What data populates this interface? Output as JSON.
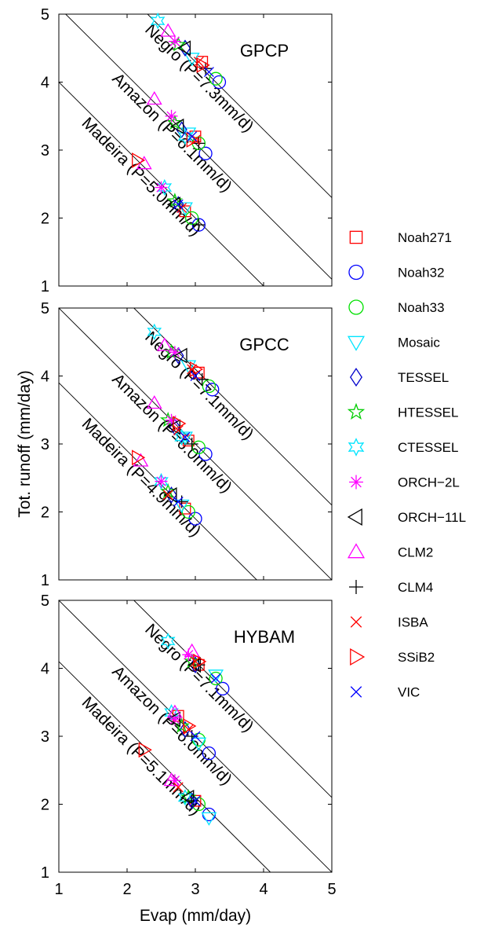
{
  "figure": {
    "xlabel": "Evap (mm/day)",
    "ylabel": "Tot. runoff (mm/day)"
  },
  "legend": {
    "entries": [
      {
        "label": "Noah271",
        "marker": "square",
        "color": "#ff0000"
      },
      {
        "label": "Noah32",
        "marker": "circle",
        "color": "#0000ff"
      },
      {
        "label": "Noah33",
        "marker": "circle",
        "color": "#00e000"
      },
      {
        "label": "Mosaic",
        "marker": "triangle-down",
        "color": "#00e5ff"
      },
      {
        "label": "TESSEL",
        "marker": "diamond",
        "color": "#0000cc"
      },
      {
        "label": "HTESSEL",
        "marker": "pentagram",
        "color": "#00cc00"
      },
      {
        "label": "CTESSEL",
        "marker": "hexagram",
        "color": "#00e5ff"
      },
      {
        "label": "ORCH−2L",
        "marker": "asterisk",
        "color": "#ff00ff"
      },
      {
        "label": "ORCH−11L",
        "marker": "triangle-left",
        "color": "#000000"
      },
      {
        "label": "CLM2",
        "marker": "triangle-up",
        "color": "#ff00ff"
      },
      {
        "label": "CLM4",
        "marker": "plus",
        "color": "#000000"
      },
      {
        "label": "ISBA",
        "marker": "x",
        "color": "#ff0000"
      },
      {
        "label": "SSiB2",
        "marker": "triangle-right",
        "color": "#ff0000"
      },
      {
        "label": "VIC",
        "marker": "x",
        "color": "#0000ff"
      }
    ]
  },
  "chart_data": [
    {
      "type": "scatter",
      "title": "GPCP",
      "xlim": [
        1,
        5
      ],
      "ylim": [
        1,
        5
      ],
      "xticks": [
        "1",
        "2",
        "3",
        "4",
        "5"
      ],
      "yticks": [
        "1",
        "2",
        "3",
        "4",
        "5"
      ],
      "tick_labels_x_visible": false,
      "lines": [
        {
          "label": "Negro (P=7.3mm/d)",
          "P": 7.3
        },
        {
          "label": "Amazon (P=6.1mm/d)",
          "P": 6.1
        },
        {
          "label": "Madeira (P=5.0mm/d)",
          "P": 5.0
        }
      ],
      "series": [
        {
          "model": "Noah271",
          "points": [
            [
              3.1,
              4.3
            ],
            [
              3.0,
              3.2
            ],
            [
              2.85,
              2.1
            ]
          ]
        },
        {
          "model": "Noah32",
          "points": [
            [
              3.35,
              4.0
            ],
            [
              3.15,
              2.95
            ],
            [
              3.05,
              1.9
            ]
          ]
        },
        {
          "model": "Noah33",
          "points": [
            [
              3.3,
              4.05
            ],
            [
              3.05,
              3.1
            ],
            [
              2.95,
              2.0
            ]
          ]
        },
        {
          "model": "Mosaic",
          "points": [
            [
              2.95,
              4.35
            ],
            [
              2.9,
              3.25
            ],
            [
              2.85,
              2.15
            ]
          ]
        },
        {
          "model": "TESSEL",
          "points": [
            [
              2.85,
              4.5
            ],
            [
              2.8,
              3.3
            ],
            [
              2.75,
              2.2
            ]
          ]
        },
        {
          "model": "HTESSEL",
          "points": [
            [
              2.75,
              4.55
            ],
            [
              2.7,
              3.4
            ],
            [
              2.7,
              2.25
            ]
          ]
        },
        {
          "model": "CTESSEL",
          "points": [
            [
              2.45,
              4.9
            ],
            [
              2.85,
              3.2
            ],
            [
              2.55,
              2.45
            ]
          ]
        },
        {
          "model": "ORCH−2L",
          "points": [
            [
              2.7,
              4.6
            ],
            [
              2.65,
              3.5
            ],
            [
              2.5,
              2.45
            ]
          ]
        },
        {
          "model": "ORCH−11L",
          "points": [
            [
              2.85,
              4.5
            ],
            [
              2.75,
              3.35
            ],
            [
              2.7,
              2.2
            ]
          ]
        },
        {
          "model": "CLM2",
          "points": [
            [
              2.6,
              4.75
            ],
            [
              2.4,
              3.75
            ],
            [
              2.25,
              2.8
            ]
          ]
        },
        {
          "model": "CLM4",
          "points": [
            [
              3.15,
              4.2
            ],
            [
              3.05,
              3.1
            ],
            [
              3.05,
              1.9
            ]
          ]
        },
        {
          "model": "ISBA",
          "points": [
            [
              3.05,
              4.3
            ],
            [
              3.0,
              3.15
            ],
            [
              2.8,
              2.15
            ]
          ]
        },
        {
          "model": "SSiB2",
          "points": [
            [
              3.1,
              4.25
            ],
            [
              2.95,
              3.15
            ],
            [
              2.15,
              2.85
            ]
          ]
        },
        {
          "model": "VIC",
          "points": [
            [
              3.2,
              4.15
            ],
            [
              2.95,
              3.2
            ],
            [
              2.75,
              2.2
            ]
          ]
        }
      ]
    },
    {
      "type": "scatter",
      "title": "GPCC",
      "xlim": [
        1,
        5
      ],
      "ylim": [
        1,
        5
      ],
      "xticks": [
        "1",
        "2",
        "3",
        "4",
        "5"
      ],
      "yticks": [
        "1",
        "2",
        "3",
        "4",
        "5"
      ],
      "tick_labels_x_visible": false,
      "lines": [
        {
          "label": "Negro (P=7.1mm/d)",
          "P": 7.1
        },
        {
          "label": "Amazon (P=6.0mm/d)",
          "P": 6.0
        },
        {
          "label": "Madeira (P=4.9mm/d)",
          "P": 4.9
        }
      ],
      "series": [
        {
          "model": "Noah271",
          "points": [
            [
              3.05,
              4.05
            ],
            [
              2.9,
              3.05
            ],
            [
              2.85,
              2.05
            ]
          ]
        },
        {
          "model": "Noah32",
          "points": [
            [
              3.25,
              3.8
            ],
            [
              3.15,
              2.85
            ],
            [
              3.0,
              1.9
            ]
          ]
        },
        {
          "model": "Noah33",
          "points": [
            [
              3.2,
              3.85
            ],
            [
              3.05,
              2.95
            ],
            [
              2.9,
              2.0
            ]
          ]
        },
        {
          "model": "Mosaic",
          "points": [
            [
              2.9,
              4.15
            ],
            [
              2.85,
              3.1
            ],
            [
              2.8,
              2.1
            ]
          ]
        },
        {
          "model": "TESSEL",
          "points": [
            [
              2.75,
              4.3
            ],
            [
              2.7,
              3.25
            ],
            [
              2.65,
              2.25
            ]
          ]
        },
        {
          "model": "HTESSEL",
          "points": [
            [
              2.65,
              4.35
            ],
            [
              2.6,
              3.35
            ],
            [
              2.6,
              2.3
            ]
          ]
        },
        {
          "model": "CTESSEL",
          "points": [
            [
              2.4,
              4.65
            ],
            [
              2.8,
              3.1
            ],
            [
              2.5,
              2.45
            ]
          ]
        },
        {
          "model": "ORCH−2L",
          "points": [
            [
              2.7,
              4.35
            ],
            [
              2.65,
              3.35
            ],
            [
              2.5,
              2.45
            ]
          ]
        },
        {
          "model": "ORCH−11L",
          "points": [
            [
              2.8,
              4.3
            ],
            [
              2.7,
              3.25
            ],
            [
              2.65,
              2.25
            ]
          ]
        },
        {
          "model": "CLM2",
          "points": [
            [
              2.55,
              4.45
            ],
            [
              2.4,
              3.6
            ],
            [
              2.2,
              2.75
            ]
          ]
        },
        {
          "model": "CLM4",
          "points": [
            [
              3.1,
              3.95
            ],
            [
              2.95,
              3.0
            ],
            [
              2.8,
              2.15
            ]
          ]
        },
        {
          "model": "ISBA",
          "points": [
            [
              2.95,
              4.1
            ],
            [
              2.75,
              3.2
            ],
            [
              2.6,
              2.25
            ]
          ]
        },
        {
          "model": "SSiB2",
          "points": [
            [
              3.0,
              4.1
            ],
            [
              2.75,
              3.3
            ],
            [
              2.15,
              2.8
            ]
          ]
        },
        {
          "model": "VIC",
          "points": [
            [
              3.0,
              4.0
            ],
            [
              2.85,
              3.1
            ],
            [
              2.75,
              2.15
            ]
          ]
        }
      ]
    },
    {
      "type": "scatter",
      "title": "HYBAM",
      "xlim": [
        1,
        5
      ],
      "ylim": [
        1,
        5
      ],
      "xticks": [
        "1",
        "2",
        "3",
        "4",
        "5"
      ],
      "yticks": [
        "1",
        "2",
        "3",
        "4",
        "5"
      ],
      "tick_labels_x_visible": true,
      "lines": [
        {
          "label": "Negro (P=7.1mm/d)",
          "P": 7.1
        },
        {
          "label": "Amazon (P=6.0mm/d)",
          "P": 6.0
        },
        {
          "label": "Madeira (P=5.1mm/d)",
          "P": 5.1
        }
      ],
      "series": [
        {
          "model": "Noah271",
          "points": [
            [
              3.05,
              4.05
            ],
            [
              2.75,
              3.3
            ],
            [
              3.0,
              2.05
            ]
          ]
        },
        {
          "model": "Noah32",
          "points": [
            [
              3.4,
              3.7
            ],
            [
              3.2,
              2.75
            ],
            [
              3.2,
              1.85
            ]
          ]
        },
        {
          "model": "Noah33",
          "points": [
            [
              3.3,
              3.85
            ],
            [
              3.05,
              2.95
            ],
            [
              3.05,
              2.0
            ]
          ]
        },
        {
          "model": "Mosaic",
          "points": [
            [
              3.3,
              3.9
            ],
            [
              3.05,
              2.9
            ],
            [
              3.2,
              1.8
            ]
          ]
        },
        {
          "model": "TESSEL",
          "points": [
            [
              3.0,
              4.05
            ],
            [
              2.85,
              3.1
            ],
            [
              2.95,
              2.05
            ]
          ]
        },
        {
          "model": "HTESSEL",
          "points": [
            [
              2.95,
              4.1
            ],
            [
              2.8,
              3.15
            ],
            [
              2.9,
              2.1
            ]
          ]
        },
        {
          "model": "CTESSEL",
          "points": [
            [
              2.6,
              4.4
            ],
            [
              2.65,
              3.35
            ],
            [
              2.85,
              2.1
            ]
          ]
        },
        {
          "model": "ORCH−2L",
          "points": [
            [
              2.9,
              4.2
            ],
            [
              2.7,
              3.25
            ],
            [
              2.7,
              2.35
            ]
          ]
        },
        {
          "model": "ORCH−11L",
          "points": [
            [
              3.0,
              4.05
            ],
            [
              2.7,
              3.25
            ],
            [
              2.9,
              2.1
            ]
          ]
        },
        {
          "model": "CLM2",
          "points": [
            [
              2.95,
              4.25
            ],
            [
              2.7,
              3.35
            ],
            [
              2.65,
              2.35
            ]
          ]
        },
        {
          "model": "CLM4",
          "points": [
            [
              3.05,
              4.05
            ],
            [
              2.95,
              3.0
            ],
            [
              2.95,
              2.05
            ]
          ]
        },
        {
          "model": "ISBA",
          "points": [
            [
              3.0,
              4.1
            ],
            [
              2.9,
              3.1
            ],
            [
              2.75,
              2.25
            ]
          ]
        },
        {
          "model": "SSiB2",
          "points": [
            [
              3.05,
              4.1
            ],
            [
              2.9,
              3.15
            ],
            [
              2.25,
              2.8
            ]
          ]
        },
        {
          "model": "VIC",
          "points": [
            [
              3.3,
              3.85
            ],
            [
              3.0,
              3.0
            ],
            [
              3.0,
              2.05
            ]
          ]
        }
      ]
    }
  ]
}
